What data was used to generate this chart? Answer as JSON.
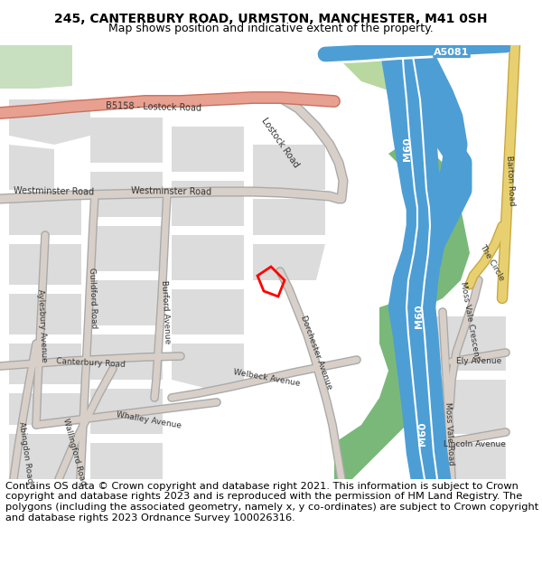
{
  "title_line1": "245, CANTERBURY ROAD, URMSTON, MANCHESTER, M41 0SH",
  "title_line2": "Map shows position and indicative extent of the property.",
  "footer_text": "Contains OS data © Crown copyright and database right 2021. This information is subject to Crown copyright and database rights 2023 and is reproduced with the permission of HM Land Registry. The polygons (including the associated geometry, namely x, y co-ordinates) are subject to Crown copyright and database rights 2023 Ordnance Survey 100026316.",
  "map_bg": "#f2efe9",
  "title_fontsize": 10,
  "subtitle_fontsize": 9,
  "footer_fontsize": 8.2,
  "m60_color": "#4d9ed4",
  "barton_color": "#e8d070",
  "lostock_color": "#e8a090",
  "road_color": "#d8d0c8",
  "block_color": "#dcdcdc",
  "green1": "#b8d8a0",
  "green2": "#7ab87a",
  "green3": "#c8dfc0"
}
